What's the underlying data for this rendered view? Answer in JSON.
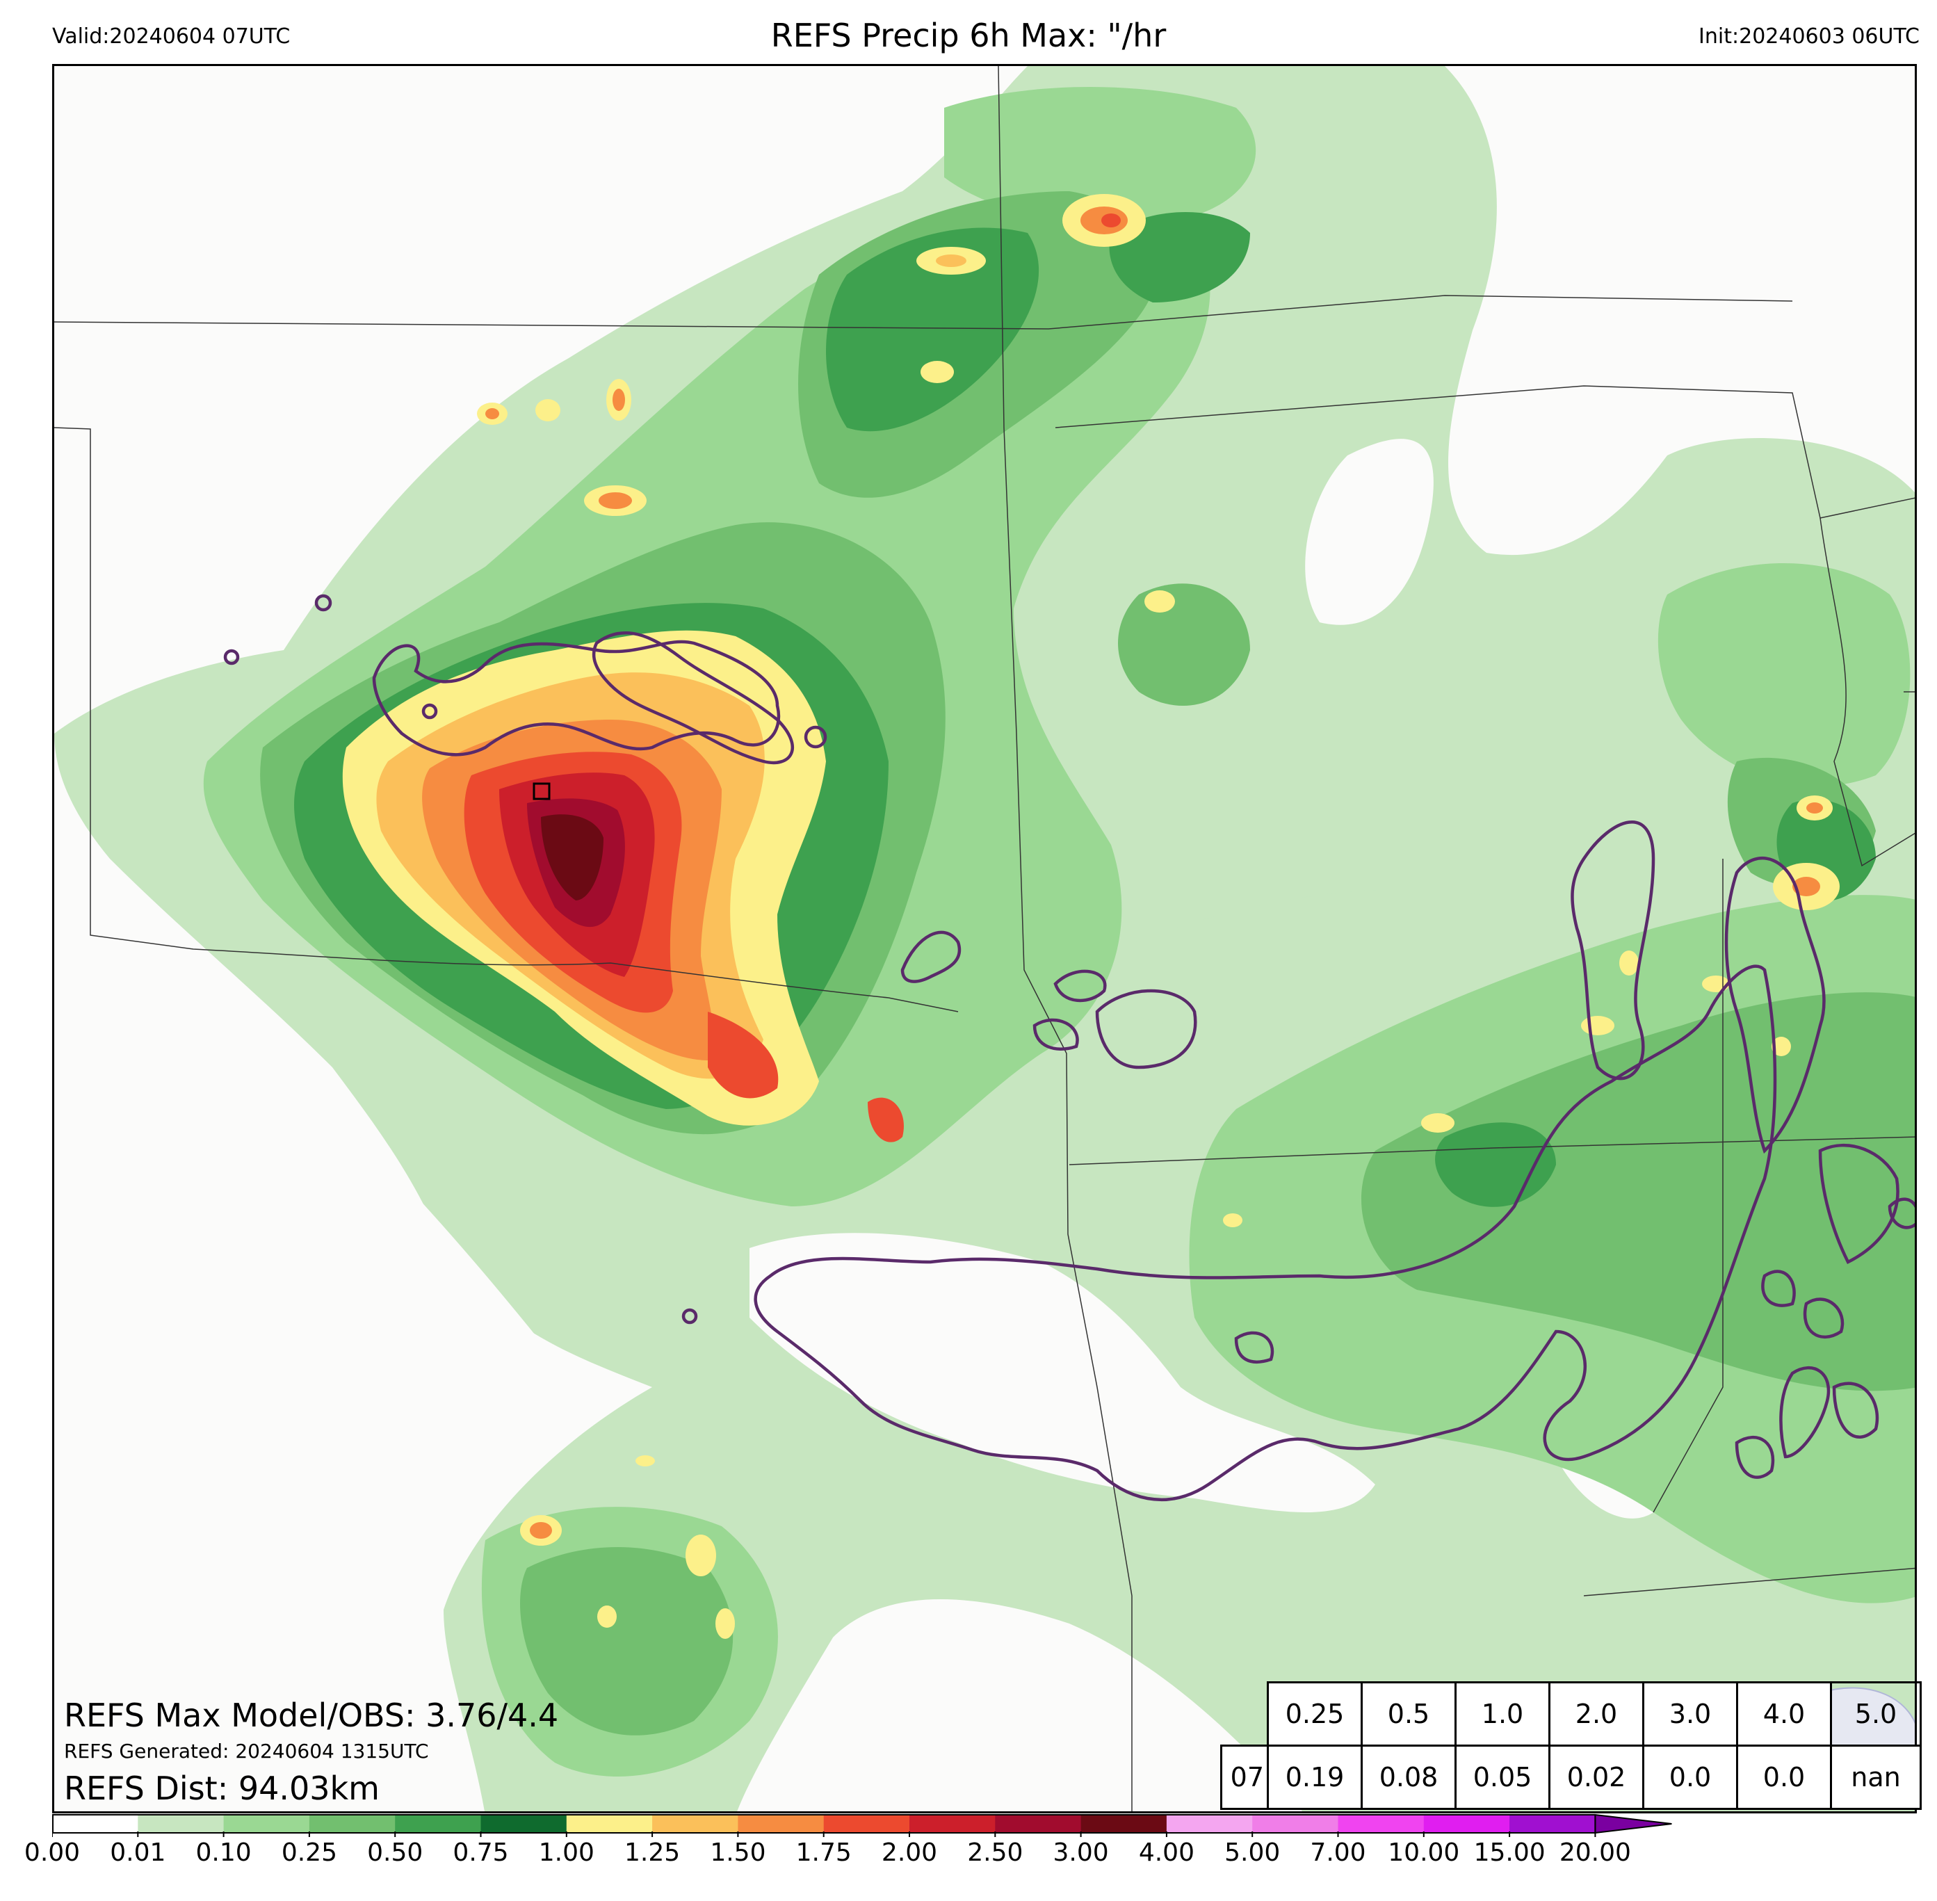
{
  "header": {
    "valid": "Valid:20240604 07UTC",
    "title": "REFS Precip 6h Max: \"/hr",
    "init": "Init:20240603 06UTC"
  },
  "stats": {
    "max_model_obs": "REFS Max Model/OBS: 3.76/4.4",
    "generated": "REFS Generated: 20240604 1315UTC",
    "dist": "REFS Dist: 94.03km"
  },
  "threshold_table": {
    "thresholds": [
      "0.25",
      "0.5",
      "1.0",
      "2.0",
      "3.0",
      "4.0",
      "5.0"
    ],
    "row_label": "07",
    "values": [
      "0.19",
      "0.08",
      "0.05",
      "0.02",
      "0.0",
      "0.0",
      "nan"
    ]
  },
  "colorbar": {
    "ticks": [
      "0.00",
      "0.01",
      "0.10",
      "0.25",
      "0.50",
      "0.75",
      "1.00",
      "1.25",
      "1.50",
      "1.75",
      "2.00",
      "2.50",
      "3.00",
      "4.00",
      "5.00",
      "7.00",
      "10.00",
      "15.00",
      "20.00"
    ],
    "colors": [
      "#ffffff",
      "#c7e6c0",
      "#9ad893",
      "#72bf6f",
      "#3ea14f",
      "#0f6b2e",
      "#fcf08a",
      "#fbc05a",
      "#f68c41",
      "#ec4a2f",
      "#cc1f2b",
      "#a10c2e",
      "#6b0a14",
      "#f4a6f0",
      "#f07ee8",
      "#f044f0",
      "#e01ef0",
      "#a010d0",
      "#7a00a0"
    ]
  },
  "map_colors": {
    "light_green": "#c7e6c0",
    "green": "#9ad893",
    "mid_green": "#72bf6f",
    "dark_green": "#3ea14f",
    "darkest_green": "#0f6b2e",
    "yellow": "#fcf08a",
    "orange": "#fbc05a",
    "dark_orange": "#f68c41",
    "red": "#ec4a2f",
    "crimson": "#cc1f2b",
    "maroon": "#a10c2e",
    "dark_maroon": "#6b0a14",
    "obs_contour": "#5a2a6a"
  }
}
